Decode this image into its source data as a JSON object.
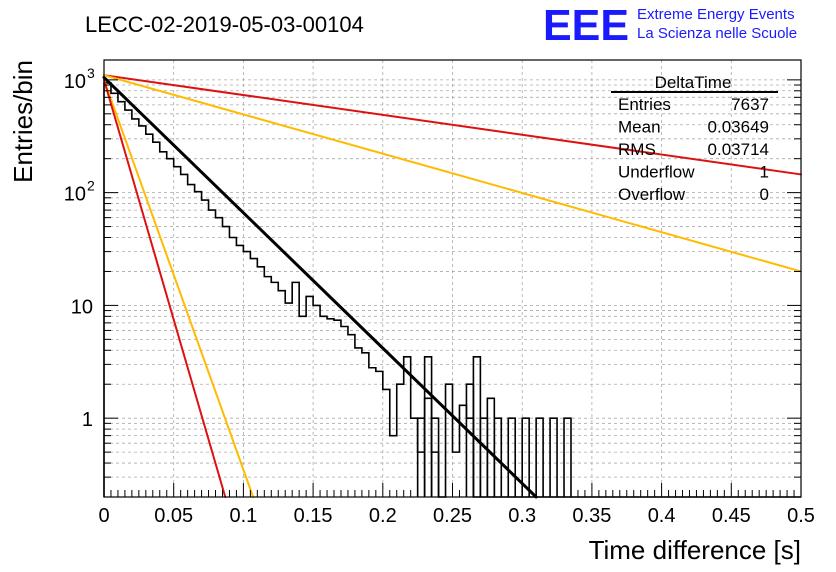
{
  "header": {
    "run_title": "LECC-02-2019-05-03-00104",
    "logo_text": "EEE",
    "logo_line1": "Extreme Energy Events",
    "logo_line2": "La Scienza nelle Scuole"
  },
  "stats": {
    "title": "DeltaTime",
    "rows": [
      {
        "label": "Entries",
        "value": "7637"
      },
      {
        "label": "Mean",
        "value": "0.03649"
      },
      {
        "label": "RMS",
        "value": "0.03714"
      },
      {
        "label": "Underflow",
        "value": "1"
      },
      {
        "label": "Overflow",
        "value": "0"
      }
    ]
  },
  "colors": {
    "histogram": "#000000",
    "fit": "#000000",
    "red": "#dd1111",
    "orange": "#ffbb00",
    "grid": "#aaaaaa",
    "logo": "#1a1aff"
  },
  "chart_data": {
    "type": "histogram",
    "xlabel": "Time difference [s]",
    "ylabel": "Entries/bin",
    "xlim": [
      0,
      0.5
    ],
    "ylim": [
      0.2,
      1500
    ],
    "yscale": "log",
    "grid": true,
    "xticks": [
      0,
      0.05,
      0.1,
      0.15,
      0.2,
      0.25,
      0.3,
      0.35,
      0.4,
      0.45,
      0.5
    ],
    "xtick_labels": [
      "0",
      "0.05",
      "0.1",
      "0.15",
      "0.2",
      "0.25",
      "0.3",
      "0.35",
      "0.4",
      "0.45",
      "0.5"
    ],
    "yticks": [
      {
        "value": 1000,
        "base": "10",
        "exp": "3",
        "label": ""
      },
      {
        "value": 100,
        "base": "10",
        "exp": "2",
        "label": ""
      },
      {
        "value": 10,
        "base": "",
        "exp": "",
        "label": "10"
      },
      {
        "value": 1,
        "base": "",
        "exp": "",
        "label": "1"
      }
    ],
    "bin_width": 0.005,
    "histogram": [
      940,
      760,
      640,
      540,
      450,
      390,
      330,
      280,
      230,
      200,
      170,
      145,
      118,
      102,
      86,
      70,
      60,
      50,
      40,
      34,
      30,
      26,
      22,
      18,
      16,
      13.5,
      10.5,
      16,
      8,
      12,
      10,
      8,
      7.6,
      7.4,
      6.5,
      5.5,
      4.2,
      3.8,
      2.8,
      2.6,
      1.8,
      0.7,
      2.0,
      3.5,
      1.0,
      0.5,
      1.5,
      0.5,
      0.2,
      2.0,
      0.5,
      1.3,
      1.0,
      0.2,
      0.2,
      0.2,
      0.2,
      0.2,
      0.2,
      0.2,
      0.2,
      0.2,
      0.2,
      0.2,
      0.2,
      0.2,
      0.2,
      0.2,
      0.2,
      0.2,
      0.2,
      0.2,
      0.2,
      0.2,
      0.2,
      0.2,
      0.2,
      0.2,
      0.2,
      0.2,
      0.2,
      0.2,
      0.2,
      0.2,
      0.2,
      0.2,
      0.2,
      0.2,
      0.2,
      0.2,
      0.2,
      0.2,
      0.2,
      0.2,
      0.2,
      0.2,
      0.2,
      0.2,
      0.2,
      0.2
    ],
    "histogram_spikes": [
      {
        "x0": 0.225,
        "x1": 0.23,
        "y": 1.0
      },
      {
        "x0": 0.23,
        "x1": 0.235,
        "y": 3.5
      },
      {
        "x0": 0.235,
        "x1": 0.24,
        "y": 1.0
      },
      {
        "x0": 0.26,
        "x1": 0.265,
        "y": 2.0
      },
      {
        "x0": 0.265,
        "x1": 0.27,
        "y": 3.5
      },
      {
        "x0": 0.27,
        "x1": 0.275,
        "y": 1.0
      },
      {
        "x0": 0.275,
        "x1": 0.28,
        "y": 1.5
      },
      {
        "x0": 0.28,
        "x1": 0.285,
        "y": 1.0
      },
      {
        "x0": 0.29,
        "x1": 0.295,
        "y": 1.0
      },
      {
        "x0": 0.3,
        "x1": 0.305,
        "y": 1.0
      },
      {
        "x0": 0.31,
        "x1": 0.315,
        "y": 1.0
      },
      {
        "x0": 0.32,
        "x1": 0.325,
        "y": 1.0
      },
      {
        "x0": 0.33,
        "x1": 0.335,
        "y": 1.0
      }
    ],
    "lines": [
      {
        "color": "fit",
        "x0": 0,
        "y0": 1050,
        "x1": 0.31,
        "y1": 0.2
      },
      {
        "color": "red",
        "x0": 0,
        "y0": 1100,
        "x1": 0.5,
        "y1": 145
      },
      {
        "color": "orange",
        "x0": 0,
        "y0": 1100,
        "x1": 0.5,
        "y1": 20
      },
      {
        "color": "orange",
        "x0": 0,
        "y0": 1000,
        "x1": 0.107,
        "y1": 0.2
      },
      {
        "color": "red",
        "x0": 0,
        "y0": 1000,
        "x1": 0.087,
        "y1": 0.2
      }
    ]
  }
}
